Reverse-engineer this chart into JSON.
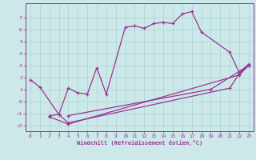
{
  "xlabel": "Windchill (Refroidissement éolien,°C)",
  "bg_color": "#cde8e8",
  "line_color": "#993399",
  "xlim": [
    -0.5,
    23.5
  ],
  "ylim": [
    -2.5,
    8.2
  ],
  "xticks": [
    0,
    1,
    2,
    3,
    4,
    5,
    6,
    7,
    8,
    9,
    10,
    11,
    12,
    13,
    14,
    15,
    16,
    17,
    18,
    19,
    20,
    21,
    22,
    23
  ],
  "yticks": [
    -2,
    -1,
    0,
    1,
    2,
    3,
    4,
    5,
    6,
    7
  ],
  "series1_x": [
    0,
    1,
    3,
    4,
    5,
    6,
    7,
    8,
    10,
    11,
    12,
    13,
    14,
    15,
    16,
    17,
    18,
    21,
    22,
    23
  ],
  "series1_y": [
    1.8,
    1.2,
    -1.1,
    1.1,
    0.7,
    0.6,
    2.8,
    0.6,
    6.2,
    6.3,
    6.1,
    6.5,
    6.6,
    6.5,
    7.3,
    7.5,
    5.8,
    4.1,
    2.4,
    3.1
  ],
  "series2_x": [
    2,
    3,
    4,
    21,
    22,
    23
  ],
  "series2_y": [
    -1.2,
    -1.1,
    -1.8,
    1.1,
    2.3,
    3.0
  ],
  "series3_x": [
    2,
    4,
    22,
    23
  ],
  "series3_y": [
    -1.3,
    -1.9,
    2.2,
    3.0
  ],
  "series4_x": [
    4,
    19,
    23
  ],
  "series4_y": [
    -1.2,
    1.0,
    3.0
  ]
}
